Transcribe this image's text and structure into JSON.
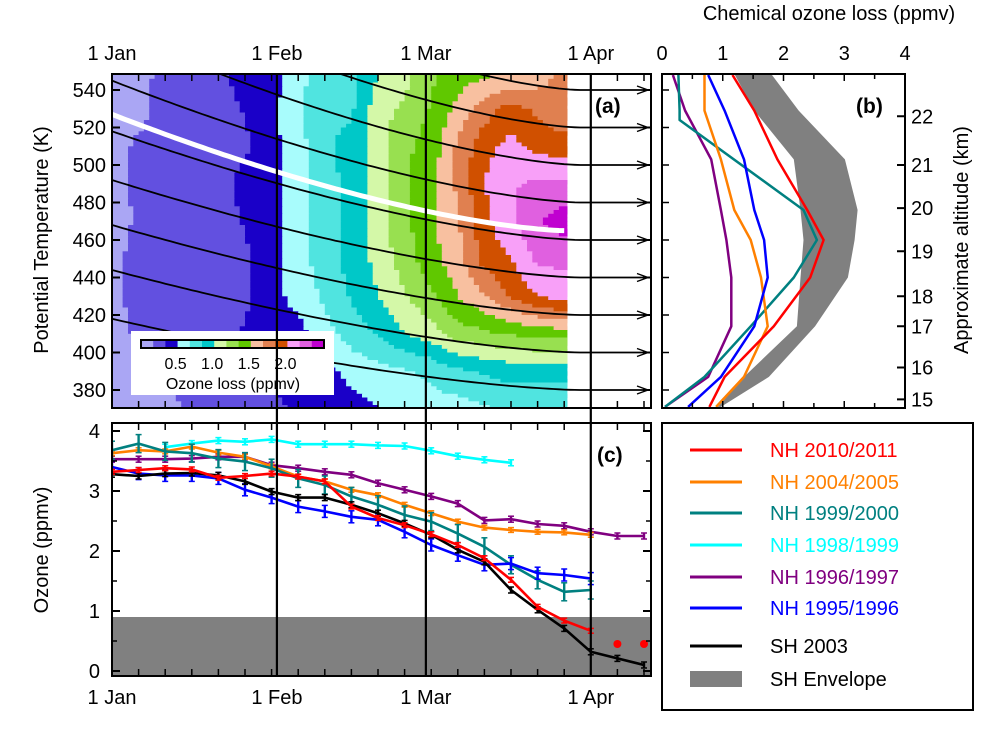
{
  "chart_data": [
    {
      "panel": "(a)",
      "type": "heatmap",
      "ylabel": "Potential Temperature (K)",
      "x_tick_labels": [
        "1 Jan",
        "1 Feb",
        "1 Mar",
        "1 Apr"
      ],
      "x_tick_dates": [
        "Jan 1",
        "Feb 1",
        "Mar 1",
        "Apr 1"
      ],
      "y_ticks": [
        380,
        400,
        420,
        440,
        460,
        480,
        500,
        520,
        540
      ],
      "ylim": [
        370,
        548
      ],
      "colorbar": {
        "label": "Ozone loss (ppmv)",
        "tick_labels": [
          "0.5",
          "1.0",
          "1.5",
          "2.0"
        ],
        "tick_values": [
          0.5,
          1.0,
          1.5,
          2.0
        ],
        "level_step": 0.1667,
        "colors": [
          "#aaa6f4",
          "#6250e0",
          "#1a00c8",
          "#a8fcfc",
          "#50e4e0",
          "#00c8c8",
          "#d4f8a8",
          "#98e050",
          "#60c800",
          "#f8c0a0",
          "#e08050",
          "#d05000",
          "#f8a0f8",
          "#e060e0",
          "#c000d0"
        ]
      },
      "grid": {
        "dates": [
          "Jan 1",
          "Jan 6",
          "Jan 11",
          "Jan 16",
          "Jan 21",
          "Jan 26",
          "Jan 31",
          "Feb 5",
          "Feb 10",
          "Feb 15",
          "Feb 20",
          "Feb 25",
          "Mar 2",
          "Mar 7",
          "Mar 12",
          "Mar 17",
          "Mar 22",
          "Mar 27"
        ],
        "theta": [
          550,
          530,
          510,
          490,
          470,
          450,
          430,
          410,
          390,
          370
        ],
        "loss": [
          [
            0.08,
            0.08,
            0.25,
            0.25,
            0.3,
            0.42,
            0.42,
            0.6,
            0.75,
            0.75,
            1.0,
            1.1,
            1.3,
            1.4,
            1.45,
            1.45,
            1.55,
            1.75
          ],
          [
            0.08,
            0.1,
            0.25,
            0.25,
            0.25,
            0.35,
            0.45,
            0.65,
            0.8,
            0.8,
            1.1,
            1.2,
            1.35,
            1.55,
            1.75,
            1.9,
            1.8,
            1.7
          ],
          [
            0.1,
            0.2,
            0.25,
            0.25,
            0.25,
            0.3,
            0.45,
            0.6,
            0.8,
            0.9,
            1.1,
            1.3,
            1.4,
            1.7,
            1.95,
            2.05,
            1.95,
            1.9
          ],
          [
            0.1,
            0.2,
            0.25,
            0.25,
            0.25,
            0.4,
            0.45,
            0.6,
            0.75,
            0.9,
            1.1,
            1.3,
            1.45,
            1.7,
            2.0,
            2.15,
            2.2,
            2.2
          ],
          [
            0.08,
            0.2,
            0.25,
            0.25,
            0.25,
            0.35,
            0.45,
            0.6,
            0.75,
            0.9,
            1.1,
            1.3,
            1.45,
            1.65,
            1.95,
            2.15,
            2.3,
            2.45
          ],
          [
            0.1,
            0.25,
            0.25,
            0.25,
            0.25,
            0.3,
            0.45,
            0.6,
            0.75,
            0.9,
            1.05,
            1.25,
            1.45,
            1.6,
            1.9,
            2.0,
            2.2,
            2.2
          ],
          [
            0.1,
            0.25,
            0.25,
            0.25,
            0.25,
            0.3,
            0.45,
            0.55,
            0.7,
            0.85,
            1.0,
            1.15,
            1.3,
            1.5,
            1.65,
            1.85,
            2.0,
            2.1
          ],
          [
            0.1,
            0.2,
            0.25,
            0.25,
            0.3,
            0.35,
            0.42,
            0.45,
            0.6,
            0.75,
            0.85,
            1.0,
            1.1,
            1.25,
            1.3,
            1.35,
            1.4,
            1.4
          ],
          [
            0.1,
            0.1,
            0.2,
            0.25,
            0.3,
            0.3,
            0.35,
            0.45,
            0.45,
            0.55,
            0.6,
            0.65,
            0.7,
            0.8,
            0.85,
            0.9,
            0.9,
            0.9
          ],
          [
            0.08,
            0.1,
            0.1,
            0.2,
            0.25,
            0.25,
            0.3,
            0.35,
            0.4,
            0.45,
            0.5,
            0.55,
            0.6,
            0.6,
            0.65,
            0.7,
            0.7,
            0.7
          ]
        ]
      },
      "isentropes": [
        {
          "theta_start": 418,
          "theta_end": 380
        },
        {
          "theta_start": 444,
          "theta_end": 400
        },
        {
          "theta_start": 468,
          "theta_end": 420
        },
        {
          "theta_start": 492,
          "theta_end": 440
        },
        {
          "theta_start": 518,
          "theta_end": 460
        },
        {
          "theta_start": 545,
          "theta_end": 480
        },
        {
          "theta_start": 572,
          "theta_end": 500
        },
        {
          "theta_start": 598,
          "theta_end": 520
        },
        {
          "theta_start": 625,
          "theta_end": 540
        }
      ],
      "highlighted_isentrope": {
        "theta_start": 527,
        "theta_end": 465,
        "color": "#ffffff",
        "end_date": "Mar 27"
      }
    },
    {
      "panel": "(b)",
      "type": "line",
      "xlabel": "Chemical ozone loss (ppmv)",
      "x_ticks": [
        0,
        1,
        2,
        3,
        4
      ],
      "xlim": [
        0,
        4
      ],
      "y2label": "Approximate altitude (km)",
      "y2_ticks": [
        {
          "km": "22",
          "theta": 526
        },
        {
          "km": "21",
          "theta": 500
        },
        {
          "km": "20",
          "theta": 477
        },
        {
          "km": "19",
          "theta": 454
        },
        {
          "km": "18",
          "theta": 430
        },
        {
          "km": "17",
          "theta": 414
        },
        {
          "km": "16",
          "theta": 392
        },
        {
          "km": "15",
          "theta": 375
        }
      ],
      "series": [
        {
          "color": "#808080",
          "kind": "envelope",
          "theta": [
            548,
            529,
            503,
            476,
            460,
            440,
            414,
            387,
            371
          ],
          "loss_low": [
            1.2,
            1.52,
            2.17,
            2.28,
            2.33,
            2.28,
            2.22,
            1.35,
            0.92
          ],
          "loss_high": [
            1.81,
            2.25,
            3.01,
            3.22,
            3.17,
            3.06,
            2.52,
            1.76,
            0.97
          ]
        },
        {
          "color": "#800080",
          "theta": [
            548,
            529,
            503,
            476,
            460,
            440,
            414,
            387,
            371
          ],
          "loss": [
            0.18,
            0.38,
            0.81,
            0.97,
            1.06,
            1.14,
            1.14,
            0.76,
            0.05
          ]
        },
        {
          "color": "#008080",
          "theta": [
            548,
            529,
            524,
            476,
            460,
            440,
            414,
            387,
            371
          ],
          "loss": [
            0.27,
            0.29,
            0.29,
            2.33,
            2.55,
            2.17,
            1.46,
            0.7,
            0.05
          ]
        },
        {
          "color": "#ff8000",
          "theta": [
            548,
            529,
            503,
            476,
            460,
            440,
            414,
            387,
            371
          ],
          "loss": [
            0.7,
            0.7,
            0.97,
            1.19,
            1.46,
            1.63,
            1.74,
            1.35,
            0.89
          ]
        },
        {
          "color": "#0000ff",
          "theta": [
            548,
            529,
            503,
            476,
            460,
            440,
            414,
            387,
            371
          ],
          "loss": [
            0.76,
            1.03,
            1.35,
            1.52,
            1.68,
            1.74,
            1.52,
            0.97,
            0.43
          ]
        },
        {
          "color": "#ff0000",
          "theta": [
            548,
            529,
            503,
            476,
            460,
            440,
            414,
            387,
            371
          ],
          "loss": [
            1.16,
            1.52,
            1.9,
            2.39,
            2.66,
            2.44,
            1.84,
            1.03,
            0.78
          ]
        }
      ]
    },
    {
      "panel": "(c)",
      "type": "line",
      "ylabel": "Ozone (ppmv)",
      "y_ticks": [
        0,
        1,
        2,
        3,
        4
      ],
      "ylim": [
        -0.08,
        4.13
      ],
      "x_tick_labels": [
        "1 Jan",
        "1 Feb",
        "1 Mar",
        "1 Apr"
      ],
      "shaded_band": {
        "from": -0.08,
        "to": 0.9,
        "color": "#808080"
      },
      "x": [
        "Jan 1",
        "Jan 6",
        "Jan 11",
        "Jan 16",
        "Jan 21",
        "Jan 26",
        "Jan 31",
        "Feb 5",
        "Feb 10",
        "Feb 15",
        "Feb 20",
        "Feb 25",
        "Mar 2",
        "Mar 7",
        "Mar 12",
        "Mar 17",
        "Mar 22",
        "Mar 27",
        "Apr 1",
        "Apr 6",
        "Apr 11"
      ],
      "series": [
        {
          "name": "NH 1996/1997",
          "color": "#800080",
          "error_bar": 0.05,
          "values": [
            3.53,
            3.53,
            3.53,
            3.54,
            3.57,
            3.57,
            3.43,
            3.38,
            3.32,
            3.27,
            3.13,
            3.02,
            2.91,
            2.79,
            2.51,
            2.53,
            2.45,
            2.42,
            2.32,
            2.25,
            2.25
          ]
        },
        {
          "name": "NH 1998/1999",
          "color": "#00ffff",
          "error_bar": 0.05,
          "values": [
            null,
            null,
            3.73,
            3.79,
            3.84,
            3.82,
            3.86,
            3.78,
            3.78,
            3.78,
            3.76,
            3.75,
            3.67,
            3.58,
            3.52,
            3.47,
            null,
            null,
            null,
            null,
            null
          ]
        },
        {
          "name": "NH 2004/2005",
          "color": "#ff8000",
          "error_bar": 0.04,
          "values": [
            3.63,
            3.68,
            3.66,
            3.74,
            3.64,
            3.57,
            3.41,
            3.24,
            3.16,
            3.02,
            2.93,
            2.77,
            2.63,
            2.49,
            2.39,
            2.35,
            2.32,
            2.31,
            2.27,
            null,
            null
          ]
        },
        {
          "name": "NH 1999/2000",
          "color": "#008080",
          "error_bar": 0.15,
          "values": [
            3.68,
            3.79,
            3.66,
            3.63,
            3.54,
            3.49,
            3.38,
            3.21,
            3.1,
            2.91,
            2.77,
            2.6,
            2.49,
            2.29,
            2.07,
            1.77,
            1.52,
            1.32,
            1.35,
            null,
            null
          ]
        },
        {
          "name": "NH 1995/1996",
          "color": "#0000ff",
          "error_bar": 0.1,
          "values": [
            3.4,
            3.29,
            3.26,
            3.26,
            3.21,
            3.02,
            2.89,
            2.74,
            2.66,
            2.57,
            2.52,
            2.32,
            2.1,
            1.93,
            1.77,
            1.79,
            1.63,
            1.6,
            1.54,
            null,
            null
          ]
        },
        {
          "name": "SH 2003",
          "color": "#000000",
          "error_bar": 0.05,
          "values": [
            3.28,
            3.25,
            3.29,
            3.3,
            3.26,
            3.16,
            2.99,
            2.89,
            2.89,
            2.77,
            2.63,
            2.46,
            2.27,
            2.02,
            1.82,
            1.35,
            1.02,
            0.71,
            0.32,
            0.21,
            0.1
          ]
        },
        {
          "name": "NH 2010/2011",
          "color": "#ff0000",
          "error_bar": 0.04,
          "values": [
            3.32,
            3.35,
            3.38,
            3.36,
            3.22,
            3.25,
            3.29,
            3.24,
            3.16,
            2.74,
            2.55,
            2.43,
            2.28,
            2.1,
            1.88,
            1.52,
            1.07,
            0.84,
            0.67,
            null,
            null
          ],
          "markers": [
            null,
            null,
            null,
            null,
            null,
            null,
            null,
            null,
            null,
            null,
            null,
            null,
            null,
            null,
            null,
            null,
            null,
            null,
            null,
            0.45,
            0.45
          ]
        }
      ]
    }
  ],
  "legend": [
    {
      "label": "NH 2010/2011",
      "color": "#ff0000"
    },
    {
      "label": "NH 2004/2005",
      "color": "#ff8000"
    },
    {
      "label": "NH 1999/2000",
      "color": "#008080"
    },
    {
      "label": "NH 1998/1999",
      "color": "#00ffff"
    },
    {
      "label": "NH 1996/1997",
      "color": "#800080"
    },
    {
      "label": "NH 1995/1996",
      "color": "#0000ff"
    },
    {
      "label": "SH 2003",
      "color": "#000000"
    },
    {
      "label": "SH Envelope",
      "color": "#808080",
      "kind": "band"
    }
  ]
}
